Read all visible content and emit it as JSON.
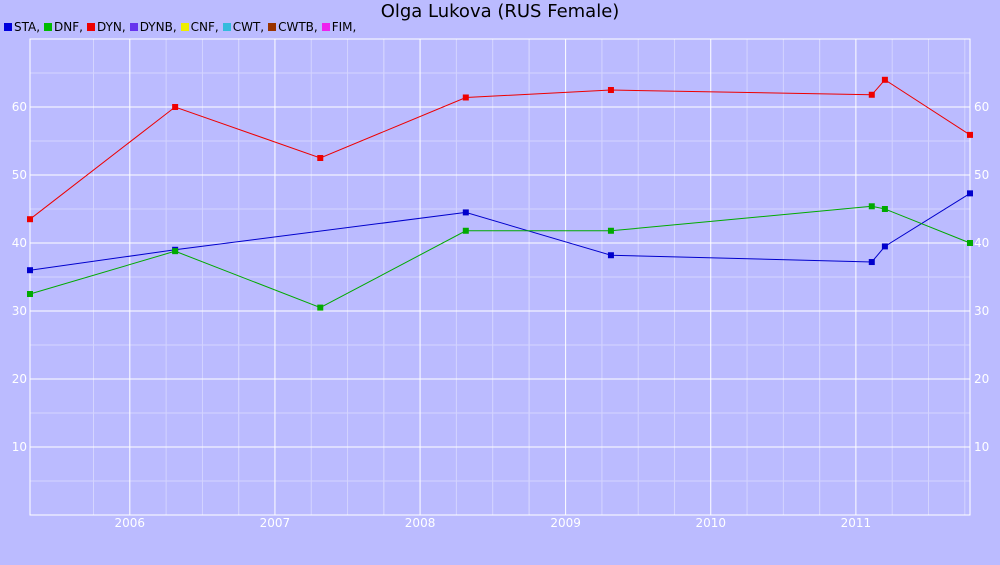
{
  "chart_data": {
    "type": "line",
    "title": "Olga Lukova (RUS Female)",
    "xlabel": "",
    "ylabel": "",
    "xlim": [
      "2005-04-25",
      "2011-10-15"
    ],
    "ylim": [
      0,
      70
    ],
    "y_ticks": [
      10,
      20,
      30,
      40,
      50,
      60
    ],
    "x_ticks": [
      "2006",
      "2007",
      "2008",
      "2009",
      "2010",
      "2011"
    ],
    "x_tick_dates": [
      "2006-01-01",
      "2007-01-01",
      "2008-01-01",
      "2009-01-01",
      "2010-01-01",
      "2011-01-01"
    ],
    "grid": true,
    "legend": "top-left",
    "legend_entries": [
      {
        "label": "STA,",
        "color": "#0000dd"
      },
      {
        "label": "DNF,",
        "color": "#00bb00"
      },
      {
        "label": "DYN,",
        "color": "#ee0000"
      },
      {
        "label": "DYNB,",
        "color": "#6633ee"
      },
      {
        "label": "CNF,",
        "color": "#eeee00"
      },
      {
        "label": "CWT,",
        "color": "#33bbdd"
      },
      {
        "label": "CWTB,",
        "color": "#993300"
      },
      {
        "label": "FIM,",
        "color": "#ee22ee"
      }
    ],
    "series": [
      {
        "name": "STA",
        "color": "#0000cc",
        "points": [
          {
            "x": "2005-04-25",
            "y": 36.0
          },
          {
            "x": "2006-04-25",
            "y": 39.0
          },
          {
            "x": "2008-04-25",
            "y": 44.5
          },
          {
            "x": "2009-04-25",
            "y": 38.2
          },
          {
            "x": "2011-02-10",
            "y": 37.2
          },
          {
            "x": "2011-03-15",
            "y": 39.5
          },
          {
            "x": "2011-10-15",
            "y": 47.3
          }
        ]
      },
      {
        "name": "DNF",
        "color": "#00aa00",
        "points": [
          {
            "x": "2005-04-25",
            "y": 32.5
          },
          {
            "x": "2006-04-25",
            "y": 38.8
          },
          {
            "x": "2007-04-25",
            "y": 30.5
          },
          {
            "x": "2008-04-25",
            "y": 41.8
          },
          {
            "x": "2009-04-25",
            "y": 41.8
          },
          {
            "x": "2011-02-10",
            "y": 45.4
          },
          {
            "x": "2011-03-15",
            "y": 45.0
          },
          {
            "x": "2011-10-15",
            "y": 40.0
          }
        ]
      },
      {
        "name": "DYN",
        "color": "#ee0000",
        "points": [
          {
            "x": "2005-04-25",
            "y": 43.5
          },
          {
            "x": "2006-04-25",
            "y": 60.0
          },
          {
            "x": "2007-04-25",
            "y": 52.5
          },
          {
            "x": "2008-04-25",
            "y": 61.4
          },
          {
            "x": "2009-04-25",
            "y": 62.5
          },
          {
            "x": "2011-02-10",
            "y": 61.8
          },
          {
            "x": "2011-03-15",
            "y": 64.0
          },
          {
            "x": "2011-10-15",
            "y": 55.9
          }
        ]
      }
    ]
  }
}
